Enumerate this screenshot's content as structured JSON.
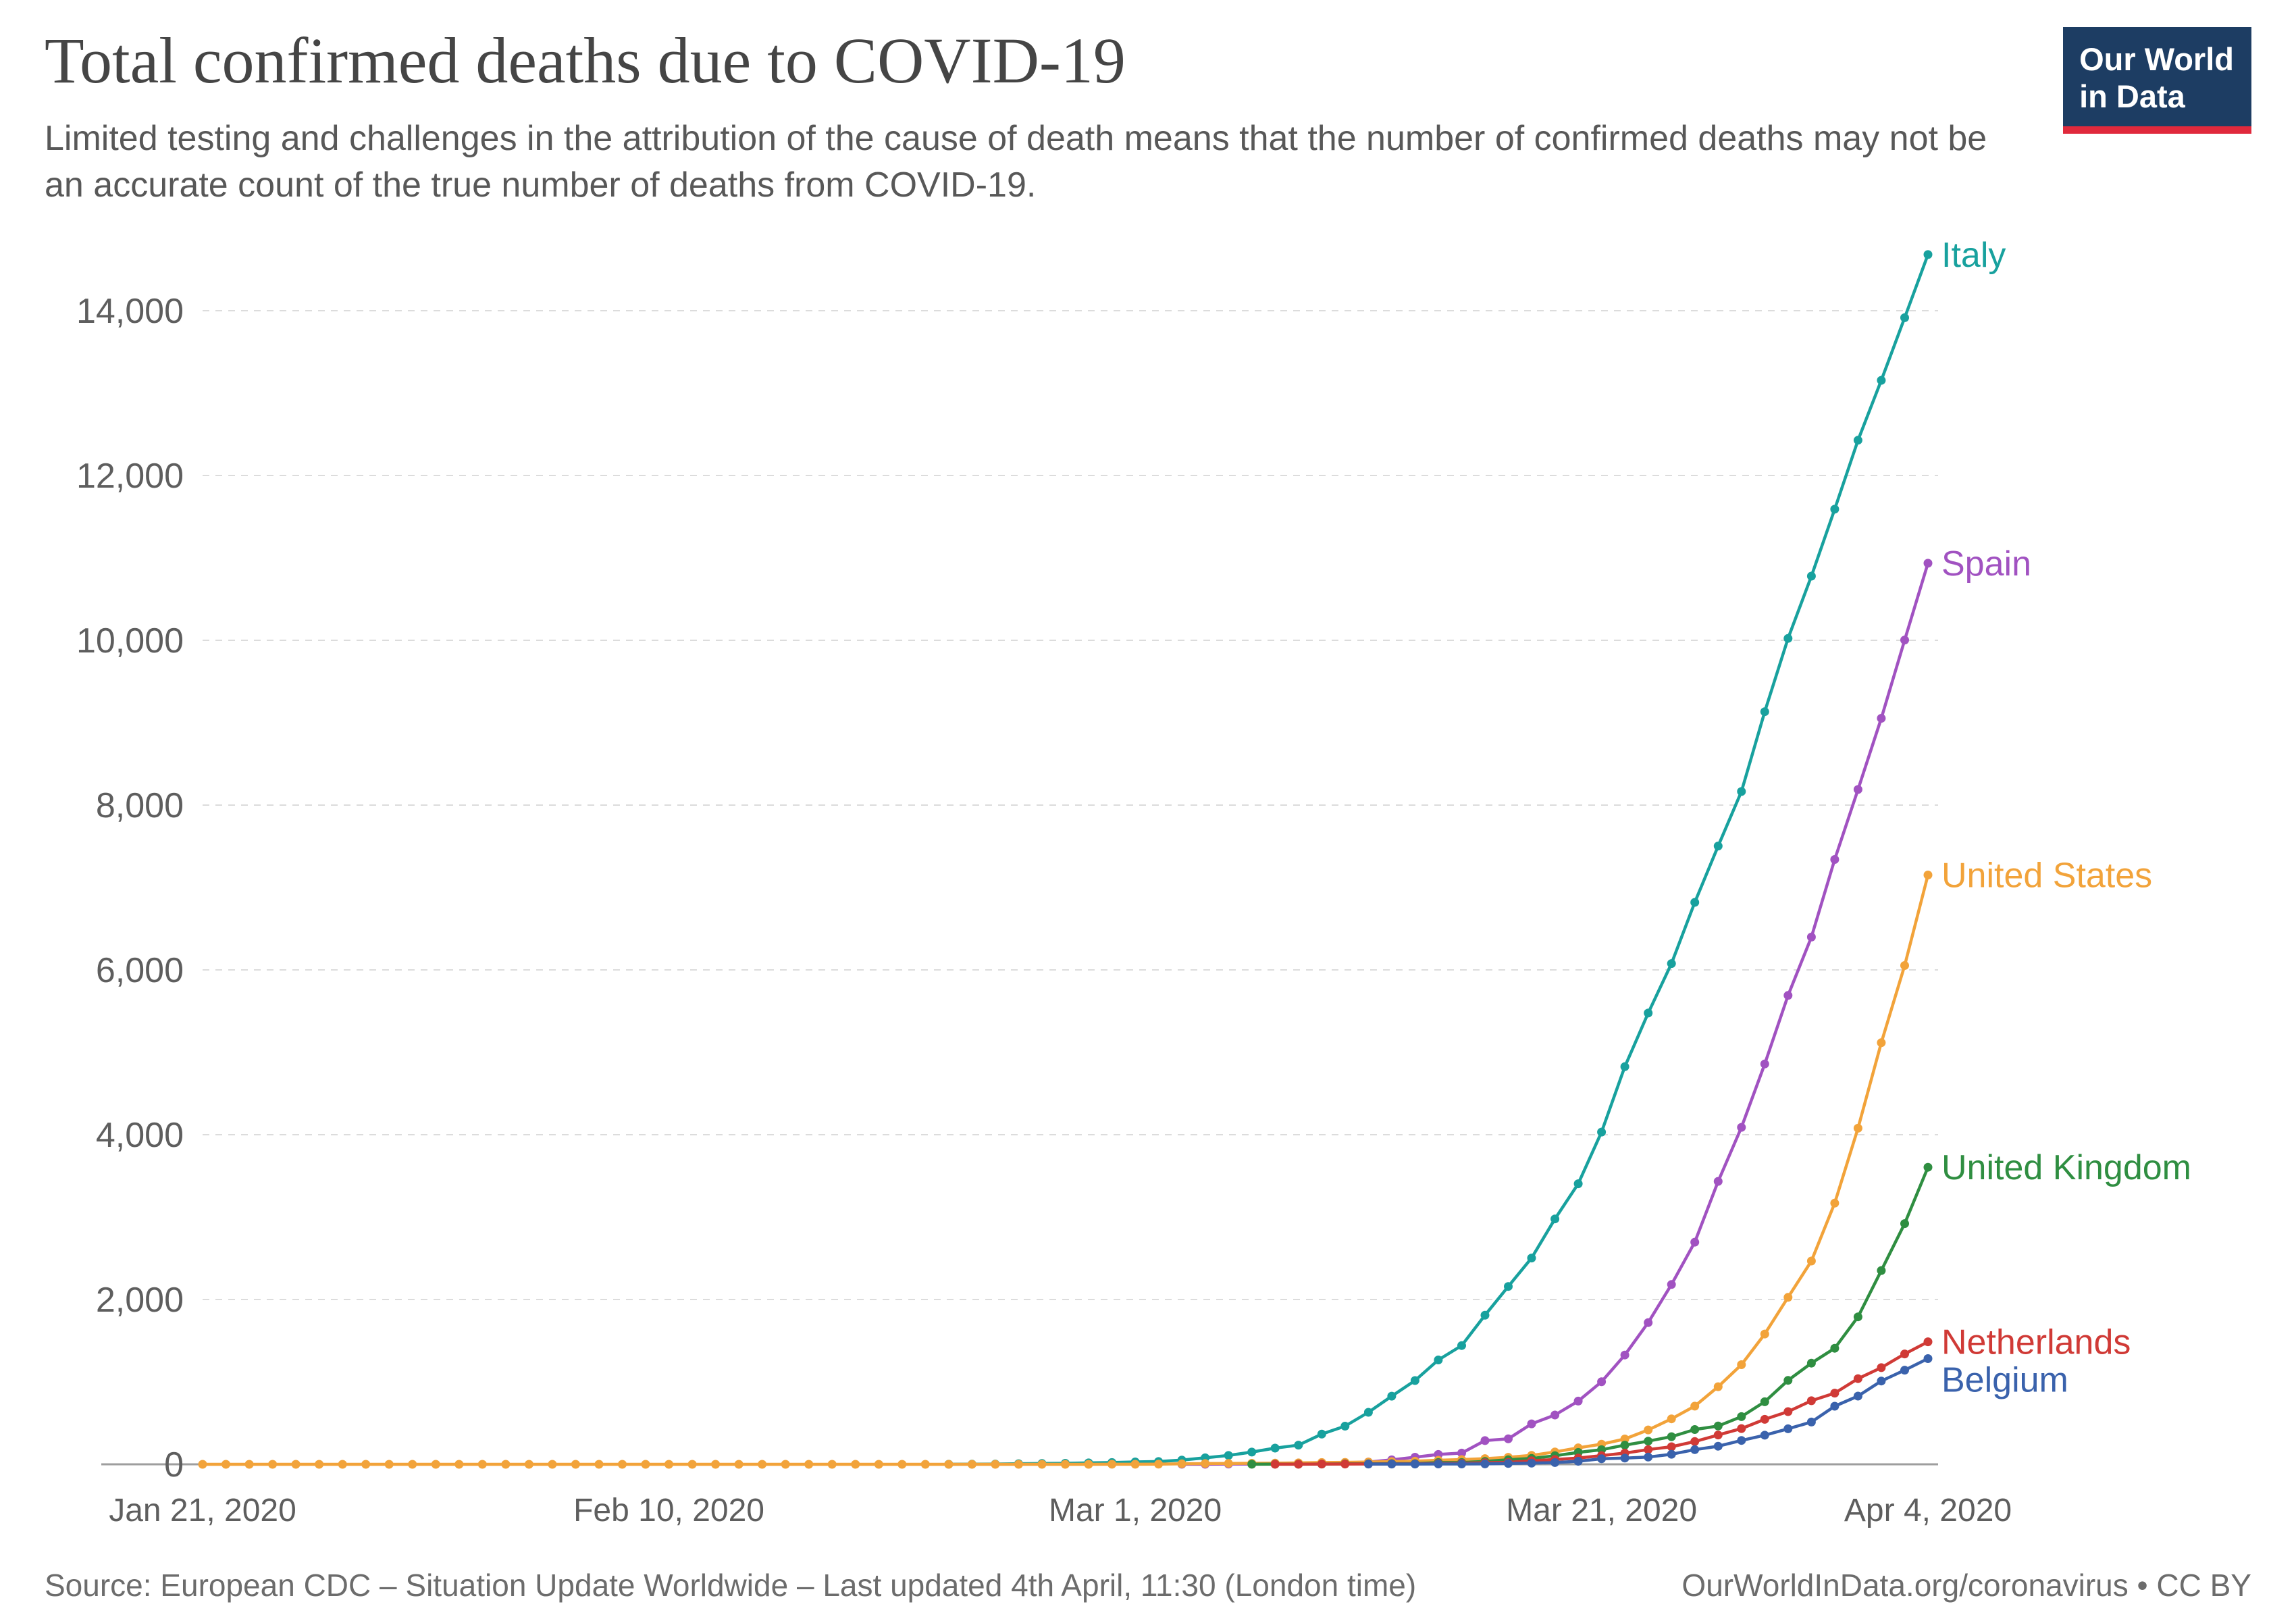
{
  "header": {
    "title": "Total confirmed deaths due to COVID-19",
    "subtitle": "Limited testing and challenges in the attribution of the cause of death means that the number of confirmed deaths may not be an accurate count of the true number of deaths from COVID-19.",
    "logo": {
      "line1": "Our World",
      "line2": "in Data",
      "bg_color": "#1d3d63",
      "accent_color": "#e0293c"
    }
  },
  "footer": {
    "source": "Source: European CDC – Situation Update Worldwide – Last updated 4th April, 11:30 (London time)",
    "attribution": "OurWorldInData.org/coronavirus • CC BY"
  },
  "chart_data": {
    "type": "line",
    "title": "Total confirmed deaths due to COVID-19",
    "x_unit": "date, daily points",
    "x_start": "Jan 21, 2020",
    "x_end": "Apr 4, 2020",
    "n_points": 75,
    "ylim": [
      0,
      14800
    ],
    "grid": "horizontal dashed",
    "legend_position": "line-end labels",
    "x_ticks": [
      {
        "i": 0,
        "label": "Jan 21, 2020"
      },
      {
        "i": 20,
        "label": "Feb 10, 2020"
      },
      {
        "i": 40,
        "label": "Mar 1, 2020"
      },
      {
        "i": 60,
        "label": "Mar 21, 2020"
      },
      {
        "i": 74,
        "label": "Apr 4, 2020"
      }
    ],
    "y_ticks": [
      {
        "value": 0,
        "label": "0"
      },
      {
        "value": 2000,
        "label": "2,000"
      },
      {
        "value": 4000,
        "label": "4,000"
      },
      {
        "value": 6000,
        "label": "6,000"
      },
      {
        "value": 8000,
        "label": "8,000"
      },
      {
        "value": 10000,
        "label": "10,000"
      },
      {
        "value": 12000,
        "label": "12,000"
      },
      {
        "value": 14000,
        "label": "14,000"
      }
    ],
    "series": [
      {
        "id": "italy",
        "name": "Italy",
        "color": "#18a19e",
        "start_index": 32,
        "values": [
          1,
          2,
          3,
          7,
          10,
          12,
          17,
          21,
          29,
          34,
          52,
          79,
          107,
          148,
          197,
          233,
          366,
          463,
          631,
          827,
          1016,
          1266,
          1441,
          1809,
          2158,
          2503,
          2978,
          3405,
          4032,
          4825,
          5476,
          6077,
          6820,
          7503,
          8165,
          9134,
          10023,
          10779,
          11591,
          12428,
          13155,
          13915,
          14681
        ]
      },
      {
        "id": "spain",
        "name": "Spain",
        "color": "#a152c1",
        "start_index": 42,
        "values": [
          1,
          1,
          3,
          3,
          5,
          5,
          10,
          17,
          28,
          54,
          86,
          120,
          136,
          288,
          309,
          491,
          598,
          767,
          1002,
          1326,
          1720,
          2182,
          2696,
          3434,
          4089,
          4858,
          5690,
          6398,
          7340,
          8189,
          9053,
          10003,
          10935
        ]
      },
      {
        "id": "united-states",
        "name": "United States",
        "color": "#f2a33a",
        "start_index": 0,
        "values": [
          0,
          0,
          0,
          0,
          0,
          0,
          0,
          0,
          0,
          0,
          0,
          0,
          0,
          0,
          0,
          0,
          0,
          0,
          0,
          0,
          0,
          0,
          0,
          0,
          0,
          0,
          0,
          0,
          0,
          0,
          0,
          0,
          0,
          0,
          0,
          0,
          0,
          0,
          0,
          1,
          1,
          2,
          6,
          9,
          11,
          12,
          14,
          17,
          21,
          24,
          28,
          33,
          38,
          49,
          57,
          69,
          85,
          108,
          150,
          200,
          244,
          307,
          417,
          552,
          706,
          942,
          1209,
          1581,
          2026,
          2467,
          3170,
          4079,
          5116,
          6053,
          7152
        ]
      },
      {
        "id": "united-kingdom",
        "name": "United Kingdom",
        "color": "#2f8e41",
        "start_index": 45,
        "values": [
          1,
          2,
          2,
          3,
          6,
          6,
          8,
          8,
          21,
          21,
          35,
          55,
          71,
          104,
          144,
          177,
          233,
          281,
          335,
          422,
          465,
          579,
          759,
          1019,
          1228,
          1408,
          1789,
          2352,
          2921,
          3605
        ]
      },
      {
        "id": "netherlands",
        "name": "Netherlands",
        "color": "#d03a36",
        "start_index": 46,
        "values": [
          1,
          1,
          3,
          3,
          4,
          5,
          5,
          10,
          12,
          20,
          24,
          43,
          58,
          76,
          106,
          136,
          179,
          213,
          276,
          356,
          434,
          546,
          639,
          771,
          864,
          1039,
          1173,
          1339,
          1487
        ]
      },
      {
        "id": "belgium",
        "name": "Belgium",
        "color": "#3a62ac",
        "start_index": 50,
        "values": [
          3,
          3,
          3,
          4,
          4,
          5,
          10,
          14,
          21,
          37,
          67,
          75,
          88,
          122,
          178,
          220,
          289,
          353,
          431,
          513,
          705,
          828,
          1011,
          1143,
          1283
        ]
      }
    ]
  }
}
